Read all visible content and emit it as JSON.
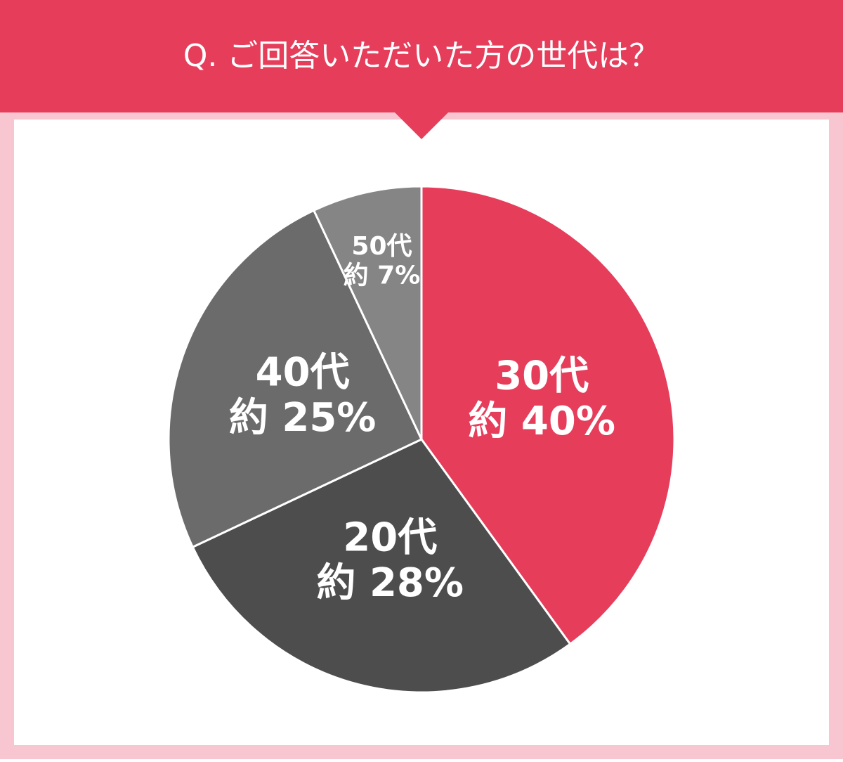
{
  "chart_data": {
    "type": "pie",
    "title": "Q. ご回答いただいた方の世代は？",
    "categories": [
      "30代",
      "20代",
      "40代",
      "50代"
    ],
    "values": [
      40,
      28,
      25,
      7
    ],
    "value_labels": [
      "約 40%",
      "約 28%",
      "約 25%",
      "約 7%"
    ],
    "colors": [
      "#e63d5b",
      "#4d4d4d",
      "#6b6b6b",
      "#858585"
    ]
  }
}
